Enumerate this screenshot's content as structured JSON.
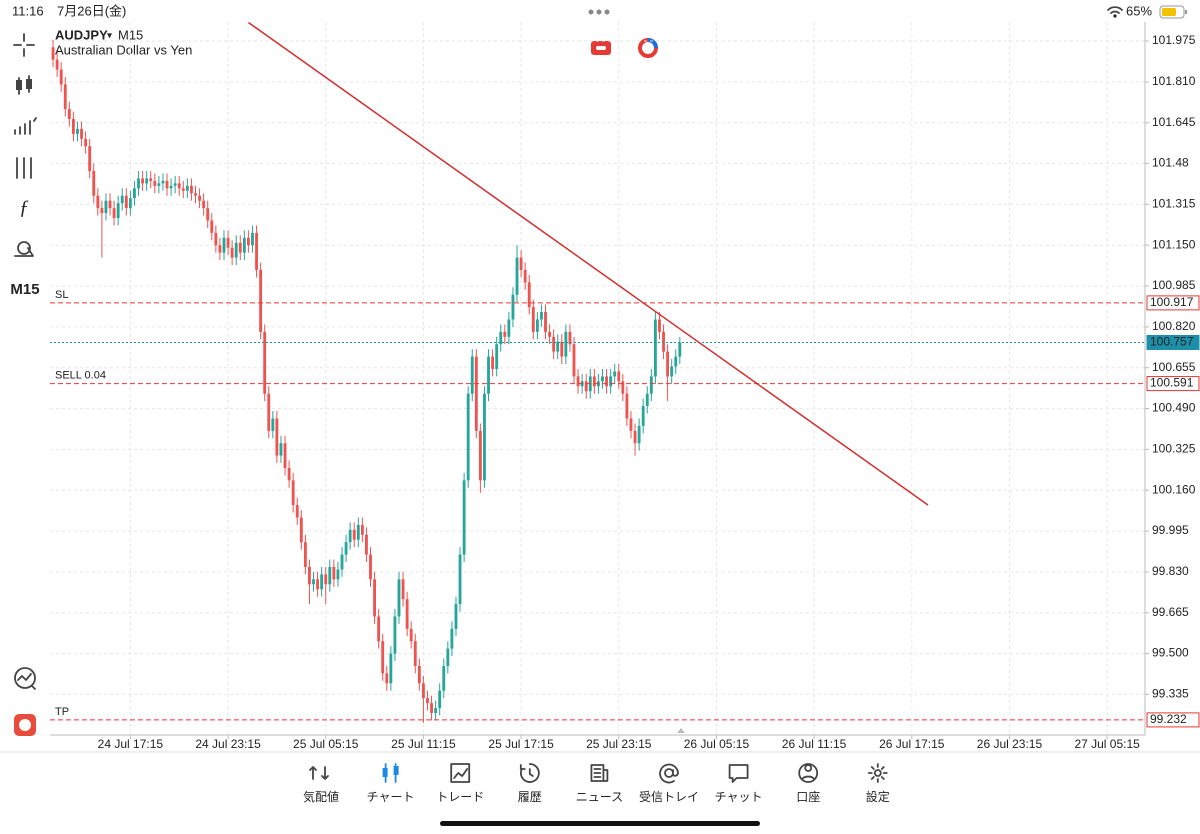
{
  "status_bar": {
    "time": "11:16",
    "date": "7月26日(金)",
    "battery": "65%"
  },
  "header": {
    "symbol": "AUDJPY",
    "timeframe": "M15",
    "description": "Australian Dollar vs Yen"
  },
  "toolbar": {
    "timeframe": "M15"
  },
  "chart_data": {
    "type": "candlestick",
    "open": [
      101.95,
      101.9,
      101.86,
      101.8,
      101.7,
      101.66,
      101.6,
      101.62,
      101.58,
      101.55,
      101.45,
      101.35,
      101.3,
      101.28,
      101.33,
      101.3,
      101.26,
      101.32,
      101.35,
      101.3,
      101.34,
      101.38,
      101.42,
      101.4,
      101.42,
      101.41,
      101.39,
      101.4,
      101.41,
      101.38,
      101.39,
      101.4,
      101.38,
      101.37,
      101.39,
      101.36,
      101.35,
      101.33,
      101.3,
      101.25,
      101.2,
      101.15,
      101.12,
      101.18,
      101.14,
      101.1,
      101.16,
      101.12,
      101.18,
      101.15,
      101.2,
      101.05,
      100.8,
      100.55,
      100.4,
      100.45,
      100.3,
      100.35,
      100.25,
      100.2,
      100.1,
      100.05,
      99.95,
      99.85,
      99.78,
      99.8,
      99.76,
      99.82,
      99.78,
      99.85,
      99.8,
      99.84,
      99.9,
      99.95,
      100.0,
      99.96,
      100.02,
      99.98,
      99.9,
      99.8,
      99.65,
      99.55,
      99.42,
      99.38,
      99.5,
      99.65,
      99.8,
      99.72,
      99.6,
      99.55,
      99.45,
      99.38,
      99.32,
      99.3,
      99.26,
      99.28,
      99.35,
      99.45,
      99.52,
      99.6,
      99.7,
      99.9,
      100.2,
      100.55,
      100.7,
      100.4,
      100.2,
      100.55,
      100.7,
      100.65,
      100.75,
      100.8,
      100.78,
      100.85,
      100.95,
      101.1,
      101.05,
      101.0,
      100.9,
      100.8,
      100.85,
      100.88,
      100.8,
      100.78,
      100.72,
      100.76,
      100.7,
      100.8,
      100.75,
      100.62,
      100.58,
      100.6,
      100.56,
      100.62,
      100.58,
      100.6,
      100.62,
      100.58,
      100.62,
      100.64,
      100.6,
      100.55,
      100.45,
      100.4,
      100.35,
      100.42,
      100.5,
      100.55,
      100.62,
      100.85,
      100.8,
      100.72,
      100.62,
      100.66,
      100.7
    ],
    "high": [
      101.98,
      101.93,
      101.89,
      101.83,
      101.73,
      101.69,
      101.65,
      101.65,
      101.61,
      101.58,
      101.48,
      101.38,
      101.33,
      101.36,
      101.36,
      101.33,
      101.35,
      101.38,
      101.38,
      101.37,
      101.41,
      101.45,
      101.45,
      101.45,
      101.45,
      101.44,
      101.43,
      101.44,
      101.44,
      101.42,
      101.43,
      101.43,
      101.41,
      101.42,
      101.42,
      101.39,
      101.38,
      101.36,
      101.33,
      101.28,
      101.23,
      101.18,
      101.21,
      101.21,
      101.17,
      101.19,
      101.19,
      101.21,
      101.21,
      101.23,
      101.23,
      101.08,
      100.83,
      100.58,
      100.48,
      100.48,
      100.38,
      100.38,
      100.28,
      100.23,
      100.13,
      100.08,
      99.98,
      99.88,
      99.83,
      99.83,
      99.85,
      99.85,
      99.88,
      99.88,
      99.87,
      99.93,
      99.98,
      100.03,
      100.03,
      100.05,
      100.05,
      100.01,
      99.93,
      99.83,
      99.68,
      99.58,
      99.45,
      99.53,
      99.68,
      99.83,
      99.83,
      99.75,
      99.63,
      99.58,
      99.48,
      99.41,
      99.35,
      99.33,
      99.31,
      99.38,
      99.48,
      99.55,
      99.63,
      99.73,
      99.93,
      100.23,
      100.58,
      100.73,
      100.73,
      100.43,
      100.58,
      100.73,
      100.73,
      100.78,
      100.83,
      100.83,
      100.88,
      100.98,
      101.15,
      101.13,
      101.08,
      101.03,
      100.93,
      100.88,
      100.91,
      100.91,
      100.83,
      100.81,
      100.79,
      100.79,
      100.83,
      100.83,
      100.78,
      100.65,
      100.63,
      100.63,
      100.65,
      100.65,
      100.63,
      100.65,
      100.65,
      100.65,
      100.67,
      100.67,
      100.63,
      100.58,
      100.48,
      100.43,
      100.45,
      100.53,
      100.58,
      100.65,
      100.88,
      100.88,
      100.83,
      100.75,
      100.69,
      100.73,
      100.78
    ],
    "low": [
      101.87,
      101.83,
      101.77,
      101.67,
      101.63,
      101.57,
      101.57,
      101.55,
      101.52,
      101.42,
      101.32,
      101.27,
      101.1,
      101.25,
      101.27,
      101.23,
      101.23,
      101.29,
      101.27,
      101.27,
      101.31,
      101.35,
      101.37,
      101.37,
      101.38,
      101.36,
      101.36,
      101.37,
      101.35,
      101.35,
      101.36,
      101.35,
      101.34,
      101.34,
      101.33,
      101.32,
      101.3,
      101.27,
      101.22,
      101.17,
      101.12,
      101.09,
      101.09,
      101.11,
      101.07,
      101.07,
      101.09,
      101.09,
      101.12,
      101.12,
      101.02,
      100.77,
      100.52,
      100.37,
      100.37,
      100.27,
      100.27,
      100.22,
      100.17,
      100.07,
      100.02,
      99.92,
      99.82,
      99.7,
      99.75,
      99.73,
      99.73,
      99.7,
      99.75,
      99.77,
      99.77,
      99.81,
      99.87,
      99.92,
      99.93,
      99.93,
      99.95,
      99.87,
      99.77,
      99.62,
      99.52,
      99.39,
      99.35,
      99.35,
      99.47,
      99.62,
      99.69,
      99.57,
      99.52,
      99.42,
      99.35,
      99.22,
      99.27,
      99.23,
      99.23,
      99.25,
      99.32,
      99.42,
      99.49,
      99.57,
      99.67,
      99.87,
      100.17,
      100.52,
      100.37,
      100.15,
      100.17,
      100.52,
      100.62,
      100.62,
      100.72,
      100.75,
      100.75,
      100.82,
      100.92,
      101.02,
      100.97,
      100.87,
      100.77,
      100.77,
      100.82,
      100.77,
      100.75,
      100.69,
      100.69,
      100.67,
      100.67,
      100.72,
      100.59,
      100.55,
      100.55,
      100.53,
      100.53,
      100.55,
      100.55,
      100.57,
      100.55,
      100.55,
      100.59,
      100.57,
      100.52,
      100.42,
      100.37,
      100.3,
      100.32,
      100.39,
      100.47,
      100.52,
      100.59,
      100.77,
      100.69,
      100.52,
      100.59,
      100.63,
      100.67
    ],
    "close": [
      101.9,
      101.86,
      101.8,
      101.7,
      101.66,
      101.6,
      101.62,
      101.58,
      101.55,
      101.45,
      101.35,
      101.3,
      101.28,
      101.33,
      101.3,
      101.26,
      101.32,
      101.35,
      101.3,
      101.34,
      101.38,
      101.42,
      101.4,
      101.42,
      101.41,
      101.39,
      101.4,
      101.41,
      101.38,
      101.39,
      101.4,
      101.38,
      101.37,
      101.39,
      101.36,
      101.35,
      101.33,
      101.3,
      101.25,
      101.2,
      101.15,
      101.12,
      101.18,
      101.14,
      101.1,
      101.16,
      101.12,
      101.18,
      101.15,
      101.2,
      101.05,
      100.8,
      100.55,
      100.4,
      100.45,
      100.3,
      100.35,
      100.25,
      100.2,
      100.1,
      100.05,
      99.95,
      99.85,
      99.78,
      99.8,
      99.76,
      99.82,
      99.78,
      99.85,
      99.8,
      99.84,
      99.9,
      99.95,
      100.0,
      99.96,
      100.02,
      99.98,
      99.9,
      99.8,
      99.65,
      99.55,
      99.42,
      99.38,
      99.5,
      99.65,
      99.8,
      99.72,
      99.6,
      99.55,
      99.45,
      99.38,
      99.32,
      99.3,
      99.26,
      99.28,
      99.35,
      99.45,
      99.52,
      99.6,
      99.7,
      99.9,
      100.2,
      100.55,
      100.7,
      100.4,
      100.2,
      100.55,
      100.7,
      100.65,
      100.75,
      100.8,
      100.78,
      100.85,
      100.95,
      101.1,
      101.05,
      101.0,
      100.9,
      100.8,
      100.85,
      100.88,
      100.8,
      100.78,
      100.72,
      100.76,
      100.7,
      100.8,
      100.75,
      100.62,
      100.58,
      100.6,
      100.56,
      100.62,
      100.58,
      100.6,
      100.62,
      100.58,
      100.62,
      100.64,
      100.6,
      100.55,
      100.45,
      100.4,
      100.35,
      100.42,
      100.5,
      100.55,
      100.62,
      100.85,
      100.8,
      100.72,
      100.62,
      100.66,
      100.7,
      100.757
    ],
    "up_color": "#26a69a",
    "down_color": "#ef5350",
    "xlim": [
      -0.75,
      268.3
    ],
    "ylim": [
      99.171,
      102.052
    ],
    "xticks": [
      {
        "value": 19,
        "label": "24 Jul 17:15"
      },
      {
        "value": 43,
        "label": "24 Jul 23:15"
      },
      {
        "value": 67,
        "label": "25 Jul 05:15"
      },
      {
        "value": 91,
        "label": "25 Jul 11:15"
      },
      {
        "value": 115,
        "label": "25 Jul 17:15"
      },
      {
        "value": 139,
        "label": "25 Jul 23:15"
      },
      {
        "value": 163,
        "label": "26 Jul 05:15"
      },
      {
        "value": 187,
        "label": "26 Jul 11:15"
      },
      {
        "value": 211,
        "label": "26 Jul 17:15"
      },
      {
        "value": 235,
        "label": "26 Jul 23:15"
      },
      {
        "value": 259,
        "label": "27 Jul 05:15"
      }
    ],
    "yticks": [
      101.975,
      {
        "value": 101.81,
        "label": "101.810"
      },
      101.645,
      101.48,
      101.315,
      {
        "value": 101.15,
        "label": "101.150"
      },
      100.985,
      {
        "value": 100.82,
        "label": "100.820"
      },
      100.655,
      {
        "value": 100.49,
        "label": "100.490"
      },
      100.325,
      {
        "value": 100.16,
        "label": "100.160"
      },
      99.995,
      {
        "value": 99.83,
        "label": "99.830"
      },
      99.665,
      {
        "value": 99.5,
        "label": "99.500"
      },
      99.335
    ],
    "grid": true,
    "levels": [
      {
        "name": "SL",
        "value": 100.917,
        "color": "#e53935",
        "line_style": "dashed"
      },
      {
        "name": "SELL 0.04",
        "value": 100.591,
        "color": "#e53935",
        "line_style": "dashed"
      },
      {
        "name": "TP",
        "value": 99.232,
        "color": "#e53935",
        "line_style": "dashed"
      },
      {
        "value": 100.757,
        "color": "#1e8fa8",
        "line_style": "dotted"
      }
    ],
    "trendline": {
      "from": [
        48,
        102.05
      ],
      "to": [
        215,
        100.1
      ],
      "color": "#d32f2f"
    }
  },
  "nav": {
    "items": [
      "気配値",
      "チャート",
      "トレード",
      "履歴",
      "ニュース",
      "受信トレイ",
      "チャット",
      "口座",
      "設定"
    ],
    "active": 1
  }
}
